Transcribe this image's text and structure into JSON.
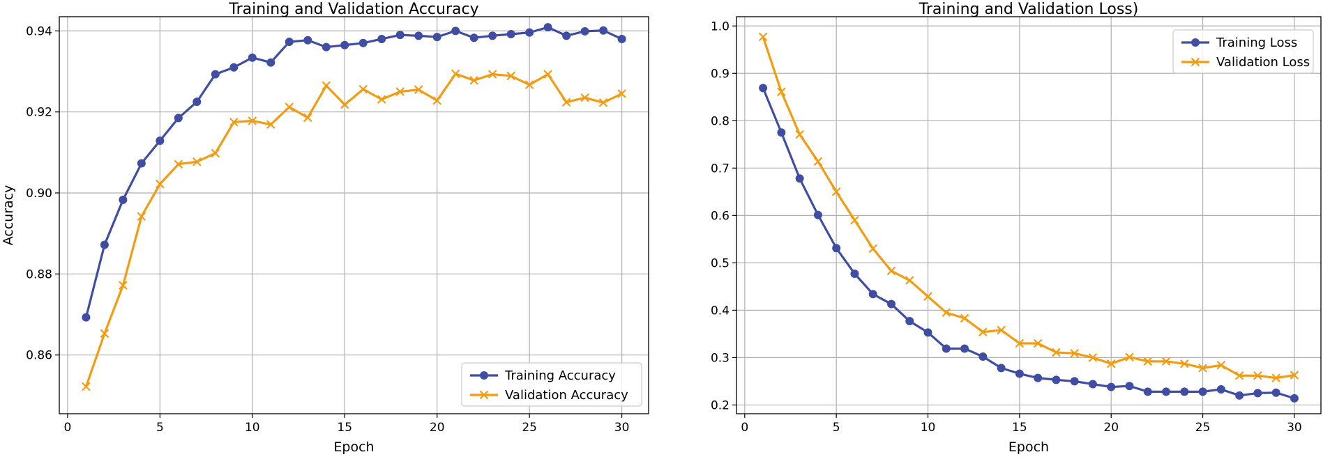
{
  "chart_data": [
    {
      "type": "line",
      "title": "Training and Validation Accuracy",
      "xlabel": "Epoch",
      "ylabel": "Accuracy",
      "xlim": [
        -0.45,
        31.45
      ],
      "ylim": [
        0.8455,
        0.9435
      ],
      "xticks": [
        0,
        5,
        10,
        15,
        20,
        25,
        30
      ],
      "xtick_labels": [
        "0",
        "5",
        "10",
        "15",
        "20",
        "25",
        "30"
      ],
      "yticks": [
        0.86,
        0.88,
        0.9,
        0.92,
        0.94
      ],
      "ytick_labels": [
        "0.86",
        "0.88",
        "0.90",
        "0.92",
        "0.94"
      ],
      "grid": true,
      "legend_position": "lower-right",
      "x": [
        1,
        2,
        3,
        4,
        5,
        6,
        7,
        8,
        9,
        10,
        11,
        12,
        13,
        14,
        15,
        16,
        17,
        18,
        19,
        20,
        21,
        22,
        23,
        24,
        25,
        26,
        27,
        28,
        29,
        30
      ],
      "series": [
        {
          "name": "Training Accuracy",
          "color": "#3f4ea2",
          "marker": "circle",
          "values": [
            0.8693,
            0.8872,
            0.8983,
            0.9073,
            0.9129,
            0.9185,
            0.9225,
            0.9293,
            0.931,
            0.9334,
            0.9322,
            0.9373,
            0.9377,
            0.936,
            0.9365,
            0.937,
            0.938,
            0.939,
            0.9388,
            0.9385,
            0.94,
            0.9383,
            0.9388,
            0.9392,
            0.9396,
            0.9409,
            0.9388,
            0.9399,
            0.9401,
            0.938
          ]
        },
        {
          "name": "Validation Accuracy",
          "color": "#f39c12",
          "marker": "x",
          "values": [
            0.8522,
            0.8653,
            0.8772,
            0.8942,
            0.9022,
            0.9071,
            0.9077,
            0.9098,
            0.9175,
            0.9178,
            0.9169,
            0.9212,
            0.9186,
            0.9265,
            0.9218,
            0.9256,
            0.9231,
            0.925,
            0.9255,
            0.9228,
            0.9294,
            0.9278,
            0.9293,
            0.9289,
            0.9267,
            0.9293,
            0.9224,
            0.9235,
            0.9223,
            0.9245
          ]
        }
      ]
    },
    {
      "type": "line",
      "title": "Training and Validation Loss)",
      "xlabel": "Epoch",
      "ylabel": "",
      "xlim": [
        -0.45,
        31.45
      ],
      "ylim": [
        0.1815,
        1.0195
      ],
      "xticks": [
        0,
        5,
        10,
        15,
        20,
        25,
        30
      ],
      "xtick_labels": [
        "0",
        "5",
        "10",
        "15",
        "20",
        "25",
        "30"
      ],
      "yticks": [
        0.2,
        0.3,
        0.4,
        0.5,
        0.6,
        0.7,
        0.8,
        0.9,
        1.0
      ],
      "ytick_labels": [
        "0.2",
        "0.3",
        "0.4",
        "0.5",
        "0.6",
        "0.7",
        "0.8",
        "0.9",
        "1.0"
      ],
      "grid": true,
      "legend_position": "upper-right",
      "x": [
        1,
        2,
        3,
        4,
        5,
        6,
        7,
        8,
        9,
        10,
        11,
        12,
        13,
        14,
        15,
        16,
        17,
        18,
        19,
        20,
        21,
        22,
        23,
        24,
        25,
        26,
        27,
        28,
        29,
        30
      ],
      "series": [
        {
          "name": "Training Loss",
          "color": "#3f4ea2",
          "marker": "circle",
          "values": [
            0.869,
            0.775,
            0.678,
            0.601,
            0.531,
            0.477,
            0.434,
            0.413,
            0.377,
            0.353,
            0.319,
            0.319,
            0.302,
            0.278,
            0.266,
            0.257,
            0.253,
            0.25,
            0.244,
            0.238,
            0.24,
            0.228,
            0.228,
            0.228,
            0.228,
            0.233,
            0.22,
            0.225,
            0.226,
            0.214
          ]
        },
        {
          "name": "Validation Loss",
          "color": "#f39c12",
          "marker": "x",
          "values": [
            0.977,
            0.861,
            0.771,
            0.714,
            0.65,
            0.59,
            0.53,
            0.483,
            0.463,
            0.429,
            0.395,
            0.383,
            0.354,
            0.358,
            0.33,
            0.33,
            0.311,
            0.309,
            0.3,
            0.287,
            0.301,
            0.292,
            0.292,
            0.287,
            0.278,
            0.284,
            0.262,
            0.262,
            0.257,
            0.263
          ]
        }
      ]
    }
  ]
}
